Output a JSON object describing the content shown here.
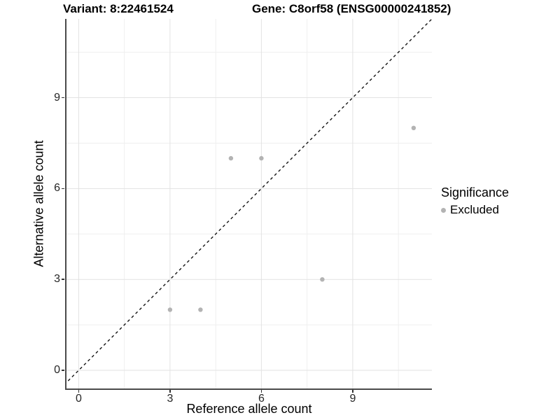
{
  "title": {
    "variant": "Variant: 8:22461524",
    "gene": "Gene: C8orf58 (ENSG00000241852)"
  },
  "chart_data": {
    "type": "scatter",
    "title_left": "Variant: 8:22461524",
    "title_right": "Gene: C8orf58 (ENSG00000241852)",
    "xlabel": "Reference allele count",
    "ylabel": "Alternative allele count",
    "xlim": [
      -0.4,
      11.6
    ],
    "ylim": [
      -0.6,
      11.6
    ],
    "x_ticks": [
      0,
      3,
      6,
      9
    ],
    "y_ticks": [
      0,
      3,
      6,
      9
    ],
    "x_minor_gridlines": [
      1.5,
      4.5,
      7.5,
      10.5
    ],
    "y_minor_gridlines": [
      1.5,
      4.5,
      7.5,
      10.5
    ],
    "grid": true,
    "reference_line": {
      "type": "identity",
      "slope": 1,
      "intercept": 0,
      "style": "dashed",
      "color": "#141414"
    },
    "series": [
      {
        "name": "Excluded",
        "color": "#b3b3b3",
        "points": [
          {
            "x": 3,
            "y": 2
          },
          {
            "x": 4,
            "y": 2
          },
          {
            "x": 5,
            "y": 7
          },
          {
            "x": 6,
            "y": 7
          },
          {
            "x": 8,
            "y": 3
          },
          {
            "x": 11,
            "y": 8
          }
        ]
      }
    ],
    "legend": {
      "title": "Significance",
      "position": "right",
      "items": [
        {
          "label": "Excluded",
          "color": "#b3b3b3"
        }
      ]
    }
  },
  "colors": {
    "background": "#ffffff",
    "axis_line": "#4a4a4a",
    "tick_mark": "#333333",
    "tick_label": "#262626",
    "grid_major": "#e2e2e2",
    "grid_minor": "#efefef",
    "point": "#b3b3b3",
    "reference_line": "#141414",
    "text": "#000000"
  }
}
